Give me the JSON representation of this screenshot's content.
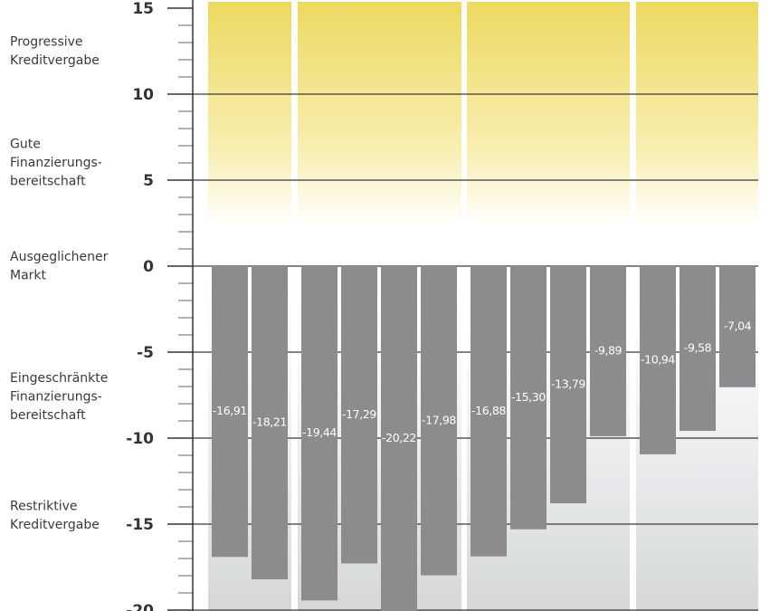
{
  "chart_data": {
    "type": "bar",
    "zone_labels": [
      {
        "lines": [
          "Progressive",
          "Kreditvergabe"
        ],
        "value": 12.5
      },
      {
        "lines": [
          "Gute",
          "Finanzierungs-",
          "bereitschaft"
        ],
        "value": 6
      },
      {
        "lines": [
          "Ausgeglichener",
          "Markt"
        ],
        "value": 0
      },
      {
        "lines": [
          "Eingeschränkte",
          "Finanzierungs-",
          "bereitschaft"
        ],
        "value": -7.6
      },
      {
        "lines": [
          "Restriktive",
          "Kreditvergabe"
        ],
        "value": -14.5
      }
    ],
    "categories": [
      null,
      null,
      null,
      null,
      null,
      null,
      null,
      null,
      null,
      null,
      null,
      null,
      null
    ],
    "values": [
      -16.91,
      -18.21,
      -19.44,
      -17.29,
      -20.22,
      -17.98,
      -16.88,
      -15.3,
      -13.79,
      -9.89,
      -10.94,
      -9.58,
      -7.04
    ],
    "value_labels": [
      "-16,91",
      "-18,21",
      "-19,44",
      "-17,29",
      "-20,22",
      "-17,98",
      "-16,88",
      "-15,30",
      "-13,79",
      "-9,89",
      "-10,94",
      "-9,58",
      "-7,04"
    ],
    "color": "#8c8c8e",
    "ylim": [
      -20,
      15
    ],
    "yticks": [
      15,
      10,
      5,
      0,
      -5,
      -10,
      -15,
      -20
    ],
    "minor_yticks": [
      14,
      13,
      12,
      11,
      9,
      8,
      7,
      6,
      4,
      3,
      2,
      1,
      -1,
      -2,
      -3,
      -4,
      -6,
      -7,
      -8,
      -9,
      -11,
      -12,
      -13,
      -14,
      -16,
      -17,
      -18,
      -19
    ],
    "grid": true
  }
}
